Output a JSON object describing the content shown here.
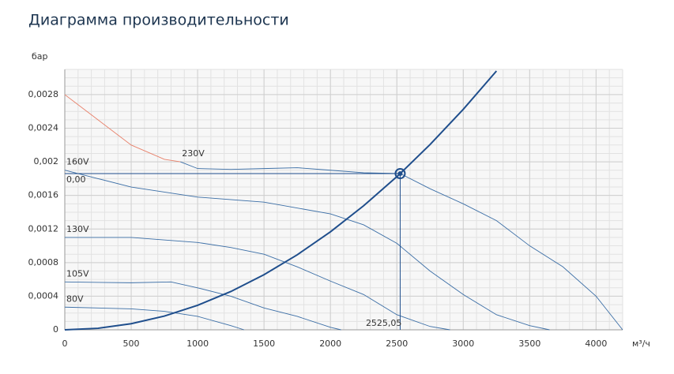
{
  "chart_data": {
    "type": "line",
    "title": "Диаграмма производительности",
    "y_label": "бар",
    "x_label": "м³/ч",
    "xlim": [
      0,
      4200
    ],
    "xticks": [
      0,
      500,
      1000,
      1500,
      2000,
      2500,
      3000,
      3500,
      4000
    ],
    "ylim": [
      0,
      0.0031
    ],
    "yticks": [
      0,
      {
        "value": 0.0004,
        "label": "0,0004"
      },
      {
        "value": 0.0008,
        "label": "0,0008"
      },
      {
        "value": 0.0012,
        "label": "0,0012"
      },
      {
        "value": 0.0016,
        "label": "0,0016"
      },
      {
        "value": 0.002,
        "label": "0,002"
      },
      {
        "value": 0.0024,
        "label": "0,0024"
      },
      {
        "value": 0.0028,
        "label": "0,0028"
      }
    ],
    "grid": true,
    "minor_grid": true,
    "series": [
      {
        "color": "#e8806a",
        "x": [
          0,
          250,
          500,
          750,
          870
        ],
        "values": [
          0.0028,
          0.0025,
          0.0022,
          0.00203,
          0.002
        ]
      },
      {
        "name": "230V",
        "color": "#3b6ea6",
        "x": [
          870,
          1000,
          1250,
          1500,
          1750,
          2000,
          2250,
          2525.05,
          2750,
          3000,
          3250,
          3500,
          3750,
          4000,
          4200
        ],
        "values": [
          0.002,
          0.00192,
          0.00191,
          0.00192,
          0.00193,
          0.0019,
          0.00187,
          0.00186,
          0.00168,
          0.0015,
          0.0013,
          0.001,
          0.00075,
          0.0004,
          0
        ]
      },
      {
        "name": "160V",
        "color": "#3b6ea6",
        "x": [
          0,
          250,
          500,
          1000,
          1500,
          2000,
          2250,
          2500,
          2750,
          3000,
          3250,
          3500,
          3650
        ],
        "values": [
          0.0019,
          0.0018,
          0.0017,
          0.00158,
          0.00152,
          0.00138,
          0.00125,
          0.00103,
          0.0007,
          0.00042,
          0.00018,
          5e-05,
          0
        ]
      },
      {
        "name": "130V",
        "color": "#3b6ea6",
        "x": [
          0,
          500,
          1000,
          1250,
          1500,
          1750,
          2000,
          2250,
          2500,
          2750,
          2900
        ],
        "values": [
          0.0011,
          0.0011,
          0.00104,
          0.00098,
          0.0009,
          0.00075,
          0.00058,
          0.00042,
          0.00018,
          4e-05,
          0
        ]
      },
      {
        "name": "105V",
        "color": "#3b6ea6",
        "x": [
          0,
          500,
          800,
          1000,
          1250,
          1500,
          1750,
          2000,
          2080
        ],
        "values": [
          0.00057,
          0.00056,
          0.00057,
          0.0005,
          0.0004,
          0.00026,
          0.00016,
          3e-05,
          0
        ]
      },
      {
        "name": "80V",
        "color": "#3b6ea6",
        "x": [
          0,
          500,
          750,
          1000,
          1250,
          1350
        ],
        "values": [
          0.00027,
          0.00025,
          0.00022,
          0.00016,
          5e-05,
          0
        ]
      }
    ],
    "system_curve": {
      "color": "#1f4e8c",
      "x": [
        0,
        250,
        500,
        750,
        1000,
        1250,
        1500,
        1750,
        2000,
        2250,
        2500,
        2525.05,
        2750,
        3000,
        3250
      ],
      "values": [
        0,
        1.82e-05,
        7.29e-05,
        0.000164,
        0.000292,
        0.000456,
        0.000656,
        0.000893,
        0.001167,
        0.001477,
        0.001823,
        0.00186,
        0.002206,
        0.002625,
        0.003081
      ]
    },
    "operating_point": {
      "x": 2525.05,
      "y": 0.00186,
      "x_label": "2525,05",
      "y_label": "0,00",
      "color": "#1f4e8c"
    }
  }
}
